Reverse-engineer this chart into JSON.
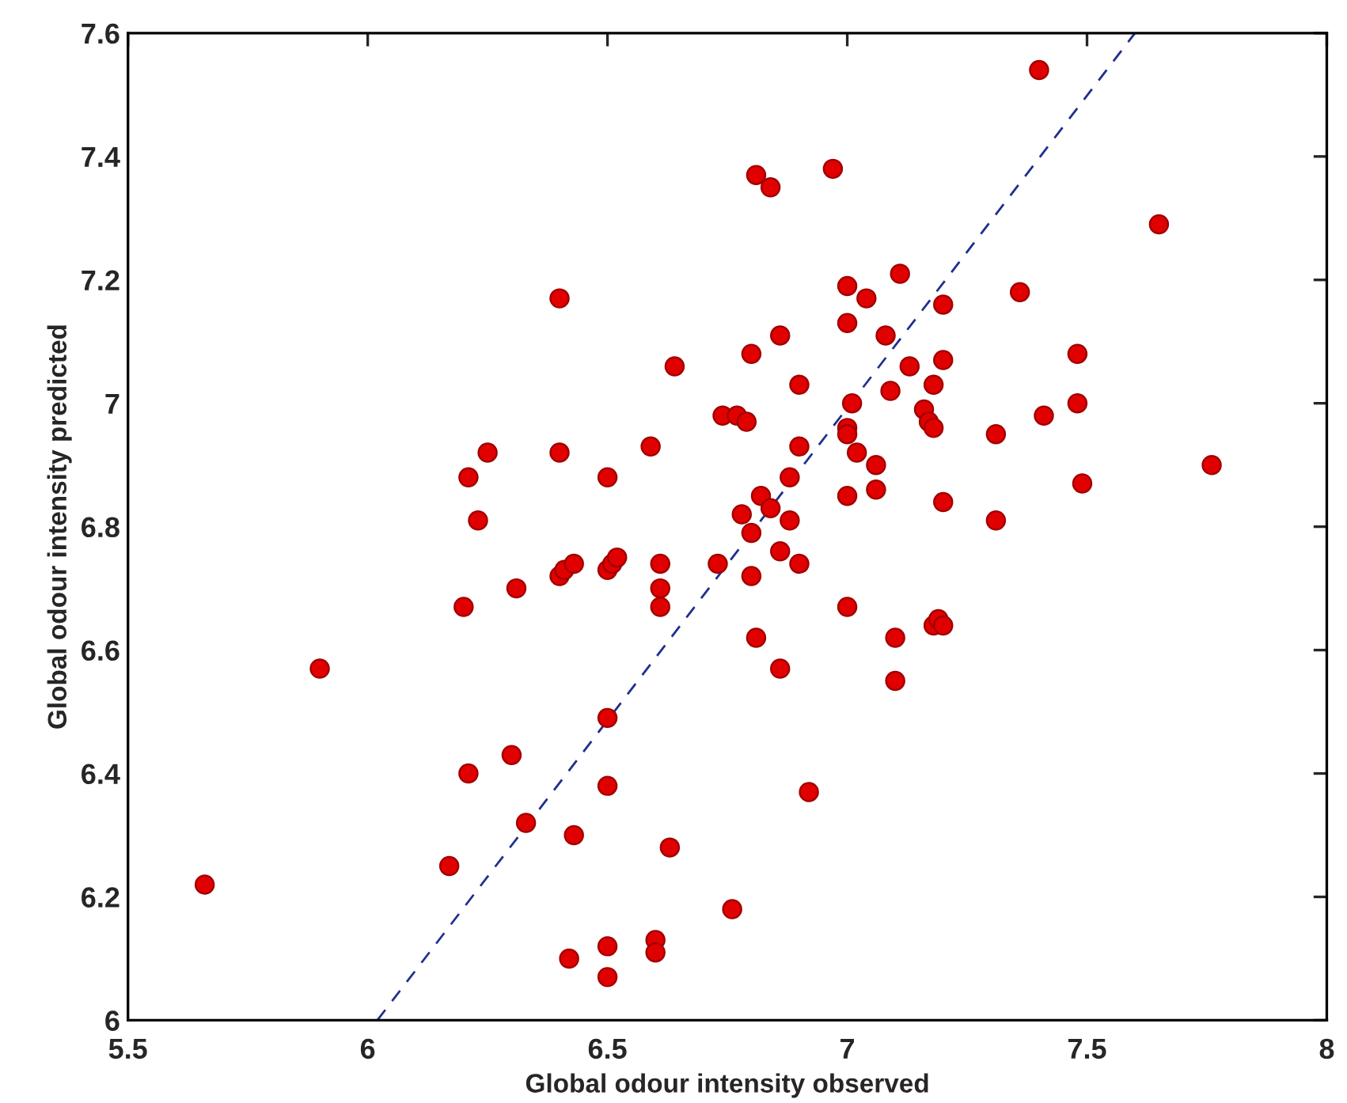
{
  "chart_data": {
    "type": "scatter",
    "xlabel": "Global odour intensity observed",
    "ylabel": "Global odour intensity predicted",
    "xlim": [
      5.5,
      8
    ],
    "ylim": [
      6,
      7.6
    ],
    "xticks": [
      5.5,
      6,
      6.5,
      7,
      7.5,
      8
    ],
    "yticks": [
      6,
      6.2,
      6.4,
      6.6,
      6.8,
      7,
      7.2,
      7.4,
      7.6
    ],
    "grid": false,
    "legend": false,
    "series": [
      {
        "color": "#e00000",
        "marker": "circle",
        "x": [
          5.66,
          5.9,
          6.17,
          6.2,
          6.21,
          6.21,
          6.23,
          6.25,
          6.3,
          6.31,
          6.33,
          6.4,
          6.4,
          6.4,
          6.41,
          6.43,
          6.42,
          6.43,
          6.5,
          6.5,
          6.51,
          6.52,
          6.5,
          6.5,
          6.5,
          6.5,
          6.59,
          6.61,
          6.61,
          6.61,
          6.6,
          6.6,
          6.63,
          6.64,
          6.73,
          6.74,
          6.77,
          6.79,
          6.76,
          6.78,
          6.8,
          6.8,
          6.8,
          6.81,
          6.81,
          6.84,
          6.82,
          6.84,
          6.86,
          6.86,
          6.86,
          6.88,
          6.88,
          6.9,
          6.9,
          6.9,
          6.92,
          6.97,
          7.0,
          7.0,
          7.0,
          7.0,
          7.0,
          7.0,
          7.01,
          7.02,
          7.04,
          7.06,
          7.06,
          7.08,
          7.09,
          7.11,
          7.1,
          7.1,
          7.13,
          7.16,
          7.17,
          7.18,
          7.18,
          7.18,
          7.19,
          7.2,
          7.2,
          7.2,
          7.2,
          7.31,
          7.31,
          7.36,
          7.4,
          7.41,
          7.48,
          7.48,
          7.49,
          7.65,
          7.76
        ],
        "values": [
          6.22,
          6.57,
          6.25,
          6.67,
          6.88,
          6.4,
          6.81,
          6.92,
          6.43,
          6.7,
          6.32,
          7.17,
          6.92,
          6.72,
          6.73,
          6.74,
          6.1,
          6.3,
          6.88,
          6.73,
          6.74,
          6.75,
          6.49,
          6.38,
          6.12,
          6.07,
          6.93,
          6.74,
          6.7,
          6.67,
          6.13,
          6.11,
          6.28,
          7.06,
          6.74,
          6.98,
          6.98,
          6.97,
          6.18,
          6.82,
          7.08,
          6.79,
          6.72,
          6.62,
          7.37,
          7.35,
          6.85,
          6.83,
          6.76,
          7.11,
          6.57,
          6.81,
          6.88,
          7.03,
          6.93,
          6.74,
          6.37,
          7.38,
          7.19,
          7.13,
          6.96,
          6.95,
          6.85,
          6.67,
          7.0,
          6.92,
          7.17,
          6.9,
          6.86,
          7.11,
          7.02,
          7.21,
          6.62,
          6.55,
          7.06,
          6.99,
          6.97,
          7.03,
          6.96,
          6.64,
          6.65,
          6.64,
          7.16,
          7.07,
          6.84,
          6.95,
          6.81,
          7.18,
          7.54,
          6.98,
          7.08,
          7.0,
          6.87,
          7.29,
          6.9
        ]
      },
      {
        "type": "line",
        "color": "#1f2f8f",
        "line_style": "dashed",
        "marker": "none",
        "x": [
          6.02,
          7.6
        ],
        "values": [
          6.0,
          7.6
        ]
      }
    ]
  }
}
